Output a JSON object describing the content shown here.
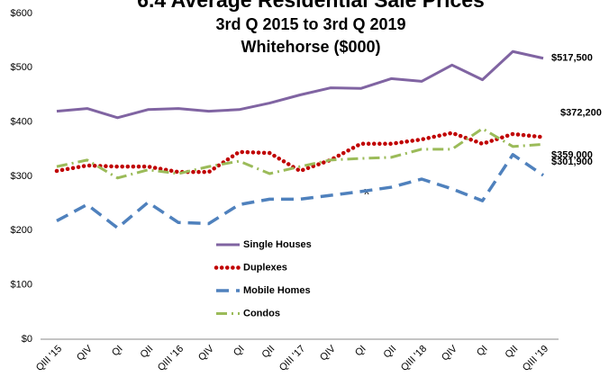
{
  "chart_data": {
    "type": "line",
    "title": "6.4 Average Residential Sale Prices",
    "subtitle": "3rd Q 2015 to 3rd Q 2019",
    "subtitle2": "Whitehorse ($000)",
    "annotations": [
      "x"
    ],
    "categories": [
      "QIII '15",
      "QIV",
      "QI",
      "QII",
      "QIII '16",
      "QIV",
      "QI",
      "QII",
      "QIII '17",
      "QIV",
      "QI",
      "QII",
      "QIII '18",
      "QIV",
      "QI",
      "QII",
      "QIII '19"
    ],
    "series": [
      {
        "name": "Single Houses",
        "color": "#8064a2",
        "dash": "solid",
        "values": [
          420,
          425,
          408,
          423,
          425,
          420,
          423,
          435,
          450,
          463,
          462,
          480,
          475,
          505,
          478,
          530,
          517.5
        ],
        "value_labels": [
          null,
          null,
          null,
          null,
          null,
          null,
          null,
          null,
          null,
          null,
          null,
          null,
          null,
          null,
          null,
          null,
          "$517,500"
        ]
      },
      {
        "name": "Duplexes",
        "color": "#c00000",
        "dash": "dotted",
        "values": [
          310,
          320,
          318,
          318,
          308,
          308,
          345,
          343,
          310,
          330,
          360,
          360,
          368,
          380,
          360,
          378,
          372.2
        ],
        "value_labels": [
          null,
          null,
          null,
          null,
          null,
          null,
          null,
          null,
          null,
          null,
          null,
          null,
          null,
          null,
          null,
          null,
          "$372,200"
        ]
      },
      {
        "name": "Mobile Homes",
        "color": "#4f81bd",
        "dash": "dashed",
        "values": [
          218,
          248,
          205,
          252,
          215,
          213,
          248,
          258,
          258,
          265,
          272,
          280,
          295,
          277,
          255,
          340,
          301.9
        ],
        "value_labels": [
          null,
          null,
          null,
          null,
          null,
          null,
          null,
          null,
          null,
          null,
          null,
          null,
          null,
          null,
          null,
          null,
          "$301,900"
        ]
      },
      {
        "name": "Condos",
        "color": "#9bbb59",
        "dash": "dashdot",
        "values": [
          318,
          330,
          297,
          312,
          305,
          318,
          328,
          305,
          318,
          330,
          333,
          335,
          350,
          350,
          388,
          355,
          359
        ],
        "value_labels": [
          null,
          null,
          null,
          null,
          null,
          null,
          null,
          null,
          null,
          null,
          null,
          null,
          null,
          null,
          null,
          null,
          "$359,000"
        ]
      }
    ],
    "ylim": [
      0,
      600
    ],
    "yticks": [
      {
        "value": 0,
        "label": "$0"
      },
      {
        "value": 100,
        "label": "$100"
      },
      {
        "value": 200,
        "label": "$200"
      },
      {
        "value": 300,
        "label": "$300"
      },
      {
        "value": 400,
        "label": "$400"
      },
      {
        "value": 500,
        "label": "$500"
      },
      {
        "value": 600,
        "label": "$600"
      }
    ],
    "grid": false
  }
}
